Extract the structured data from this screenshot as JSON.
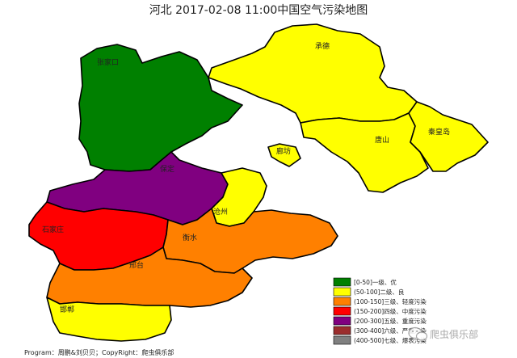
{
  "title": "河北 2017-02-08 11:00中国空气污染地图",
  "colors": {
    "level1": "#008000",
    "level2": "#ffff00",
    "level3": "#ff8000",
    "level4": "#ff0000",
    "level5": "#800080",
    "level6": "#9b2d2d",
    "level7": "#808080"
  },
  "cities": [
    {
      "name": "张家口",
      "level": 1
    },
    {
      "name": "承德",
      "level": 2
    },
    {
      "name": "秦皇岛",
      "level": 2
    },
    {
      "name": "唐山",
      "level": 2
    },
    {
      "name": "廊坊",
      "level": 2
    },
    {
      "name": "保定",
      "level": 5
    },
    {
      "name": "沧州",
      "level": 2
    },
    {
      "name": "石家庄",
      "level": 4
    },
    {
      "name": "衡水",
      "level": 3
    },
    {
      "name": "邢台",
      "level": 3
    },
    {
      "name": "邯郸",
      "level": 2
    }
  ],
  "legend": [
    {
      "label": "[0-50]一级、优"
    },
    {
      "label": "(50-100]二级、良"
    },
    {
      "label": "(100-150]三级、轻度污染"
    },
    {
      "label": "(150-200]四级、中度污染"
    },
    {
      "label": "(200-300]五级、重度污染"
    },
    {
      "label": "(300-400]六级、严重污染"
    },
    {
      "label": "(400-500]七级、爆表污染"
    }
  ],
  "footer": "Program：周鹏&刘贝贝；CopyRight：爬虫俱乐部",
  "watermark": "爬虫俱乐部",
  "watermark_icon": "wechat-icon"
}
